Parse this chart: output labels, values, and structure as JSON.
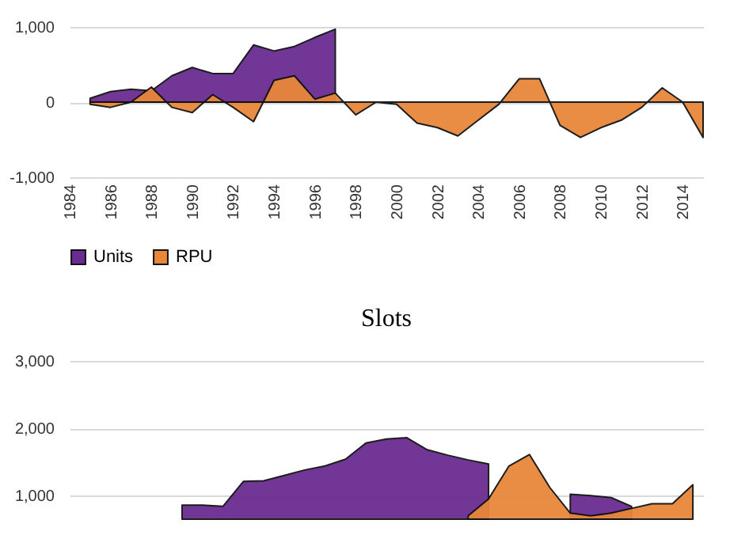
{
  "chart_data": [
    {
      "type": "area",
      "xlim": [
        1984,
        2015
      ],
      "xticks": [
        1984,
        1986,
        1988,
        1990,
        1992,
        1994,
        1996,
        1998,
        2000,
        2002,
        2004,
        2006,
        2008,
        2010,
        2012,
        2014
      ],
      "ylim": [
        -1000,
        1000
      ],
      "yticks": [
        {
          "value": -1000,
          "label": "-1,000"
        },
        0,
        {
          "value": 1000,
          "label": "1,000"
        }
      ],
      "grid": "y",
      "legend": "bottom",
      "x": [
        1985,
        1986,
        1987,
        1988,
        1989,
        1990,
        1991,
        1992,
        1993,
        1994,
        1995,
        1996,
        1997,
        1998,
        1999,
        2000,
        2001,
        2002,
        2003,
        2004,
        2005,
        2006,
        2007,
        2008,
        2009,
        2010,
        2011,
        2012,
        2013,
        2014,
        2015
      ],
      "series": [
        {
          "name": "Units",
          "color": "#6a2c91",
          "values": [
            50,
            140,
            170,
            150,
            350,
            460,
            380,
            380,
            760,
            680,
            740,
            860,
            970,
            null,
            null,
            null,
            null,
            null,
            null,
            null,
            null,
            null,
            null,
            null,
            null,
            null,
            null,
            null,
            null,
            null,
            null
          ]
        },
        {
          "name": "RPU",
          "color": "#e8873a",
          "values": [
            -30,
            -70,
            0,
            200,
            -70,
            -140,
            100,
            -70,
            -260,
            290,
            350,
            40,
            120,
            -170,
            0,
            -30,
            -280,
            -340,
            -450,
            -240,
            -30,
            310,
            310,
            -310,
            -470,
            -340,
            -240,
            -70,
            190,
            0,
            -470
          ]
        }
      ]
    },
    {
      "type": "area",
      "title": "Slots",
      "categories": [
        null,
        null,
        null,
        null,
        null,
        null,
        null,
        null,
        null,
        null,
        null,
        null,
        null,
        null,
        null,
        null,
        null,
        null,
        null,
        null,
        null,
        null,
        null,
        null,
        null,
        null,
        null,
        null,
        null,
        null,
        null
      ],
      "ylim": [
        650,
        3000
      ],
      "yticks": [
        {
          "value": 1000,
          "label": "1,000"
        },
        {
          "value": 2000,
          "label": "2,000"
        },
        {
          "value": 3000,
          "label": "3,000"
        }
      ],
      "grid": "y",
      "tick_labels": "y",
      "series": [
        {
          "color": "#6a2c91",
          "values": [
            null,
            null,
            null,
            null,
            null,
            860,
            860,
            840,
            1210,
            1220,
            1300,
            1380,
            1440,
            1540,
            1780,
            1840,
            1860,
            1680,
            1600,
            1530,
            1470,
            null,
            null,
            null,
            1020,
            1000,
            970,
            840,
            null,
            null,
            null
          ]
        },
        {
          "color": "#e8873a",
          "values": [
            null,
            null,
            null,
            null,
            null,
            null,
            null,
            null,
            null,
            null,
            null,
            null,
            null,
            null,
            null,
            null,
            null,
            null,
            null,
            700,
            950,
            1440,
            1610,
            1120,
            740,
            700,
            740,
            810,
            880,
            880,
            1160
          ]
        }
      ]
    }
  ]
}
